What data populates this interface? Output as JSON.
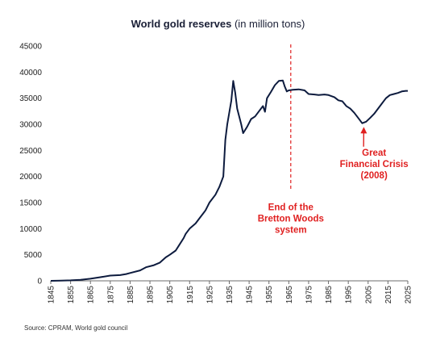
{
  "title": {
    "bold": "World gold reserves",
    "normal": " (in million tons)"
  },
  "source": "Source: CPRAM, World gold council",
  "chart_data": {
    "type": "line",
    "title": "World gold reserves (in million tons)",
    "xlabel": "",
    "ylabel": "",
    "xlim": [
      1845,
      2025
    ],
    "ylim": [
      0,
      45000
    ],
    "grid": false,
    "x_ticks": [
      "1845",
      "1855",
      "1865",
      "1875",
      "1885",
      "1895",
      "1905",
      "1915",
      "1925",
      "1935",
      "1945",
      "1955",
      "1965",
      "1975",
      "1985",
      "1995",
      "2005",
      "2015",
      "2025"
    ],
    "y_ticks": [
      "0",
      "5000",
      "10000",
      "15000",
      "20000",
      "25000",
      "30000",
      "35000",
      "40000",
      "45000"
    ],
    "series": [
      {
        "color": "#0d1b3e",
        "points": [
          [
            1845,
            0
          ],
          [
            1850,
            50
          ],
          [
            1855,
            100
          ],
          [
            1860,
            200
          ],
          [
            1865,
            400
          ],
          [
            1870,
            700
          ],
          [
            1875,
            1000
          ],
          [
            1880,
            1100
          ],
          [
            1883,
            1300
          ],
          [
            1885,
            1500
          ],
          [
            1890,
            2000
          ],
          [
            1893,
            2600
          ],
          [
            1897,
            3000
          ],
          [
            1900,
            3500
          ],
          [
            1903,
            4500
          ],
          [
            1905,
            5000
          ],
          [
            1908,
            5800
          ],
          [
            1910,
            7000
          ],
          [
            1912,
            8200
          ],
          [
            1913,
            9000
          ],
          [
            1915,
            10000
          ],
          [
            1918,
            11000
          ],
          [
            1920,
            12000
          ],
          [
            1923,
            13500
          ],
          [
            1925,
            15000
          ],
          [
            1928,
            16500
          ],
          [
            1930,
            18000
          ],
          [
            1932,
            20000
          ],
          [
            1933,
            27000
          ],
          [
            1934,
            30000
          ],
          [
            1936,
            34500
          ],
          [
            1937,
            38300
          ],
          [
            1938,
            36000
          ],
          [
            1939,
            33000
          ],
          [
            1941,
            30000
          ],
          [
            1942,
            28300
          ],
          [
            1944,
            29500
          ],
          [
            1946,
            31000
          ],
          [
            1948,
            31500
          ],
          [
            1950,
            32500
          ],
          [
            1952,
            33500
          ],
          [
            1953,
            32400
          ],
          [
            1954,
            35000
          ],
          [
            1956,
            36200
          ],
          [
            1958,
            37500
          ],
          [
            1960,
            38300
          ],
          [
            1962,
            38400
          ],
          [
            1963,
            37200
          ],
          [
            1964,
            36300
          ],
          [
            1965,
            36500
          ],
          [
            1967,
            36600
          ],
          [
            1970,
            36700
          ],
          [
            1973,
            36500
          ],
          [
            1975,
            35800
          ],
          [
            1978,
            35700
          ],
          [
            1980,
            35600
          ],
          [
            1983,
            35700
          ],
          [
            1985,
            35600
          ],
          [
            1988,
            35200
          ],
          [
            1990,
            34600
          ],
          [
            1992,
            34400
          ],
          [
            1994,
            33500
          ],
          [
            1996,
            33000
          ],
          [
            1998,
            32200
          ],
          [
            2000,
            31200
          ],
          [
            2002,
            30200
          ],
          [
            2004,
            30500
          ],
          [
            2006,
            31200
          ],
          [
            2008,
            32000
          ],
          [
            2010,
            33000
          ],
          [
            2012,
            34000
          ],
          [
            2014,
            35000
          ],
          [
            2016,
            35600
          ],
          [
            2018,
            35800
          ],
          [
            2020,
            36000
          ],
          [
            2022,
            36300
          ],
          [
            2024,
            36400
          ],
          [
            2025,
            36400
          ]
        ]
      }
    ],
    "marker_line": {
      "x": 1966,
      "color": "#e02020"
    },
    "annotations": [
      {
        "lines": [
          "End of the",
          "Bretton Woods",
          "system"
        ],
        "x": 1966,
        "y": 13500,
        "color": "#e02020"
      },
      {
        "lines": [
          "Great",
          "Financial Crisis",
          "(2008)"
        ],
        "x": 2008,
        "y": 24000,
        "color": "#e02020",
        "arrow_to": [
          2002,
          29800
        ]
      }
    ]
  }
}
